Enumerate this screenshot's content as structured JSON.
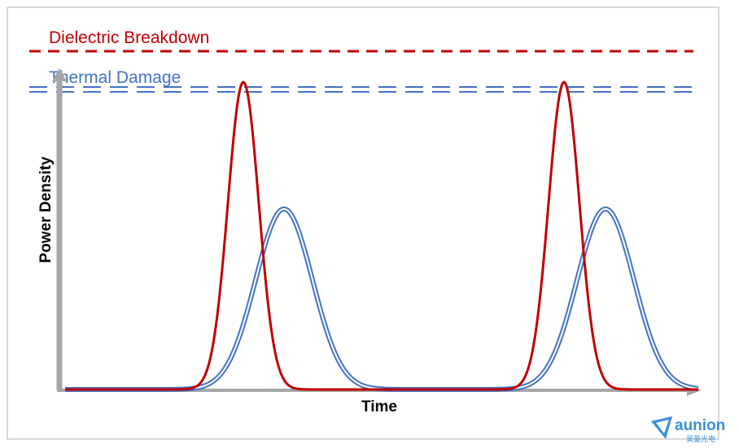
{
  "labels": {
    "dielectric": "Dielectric Breakdown",
    "thermal": "Thermal Damage",
    "xaxis": "Time",
    "yaxis": "Power Density"
  },
  "logo": {
    "name": "aunion",
    "subtitle": "昊量光电"
  },
  "colors": {
    "red": "#c00000",
    "blue": "#4472c4",
    "axis": "#a6a6a6",
    "logo": "#3a8fd9"
  },
  "pulses": {
    "short_pulse_count": 2,
    "long_pulse_count": 2,
    "short_peak_level": "at thermal damage threshold",
    "long_peak_level": "below thermal damage threshold"
  }
}
